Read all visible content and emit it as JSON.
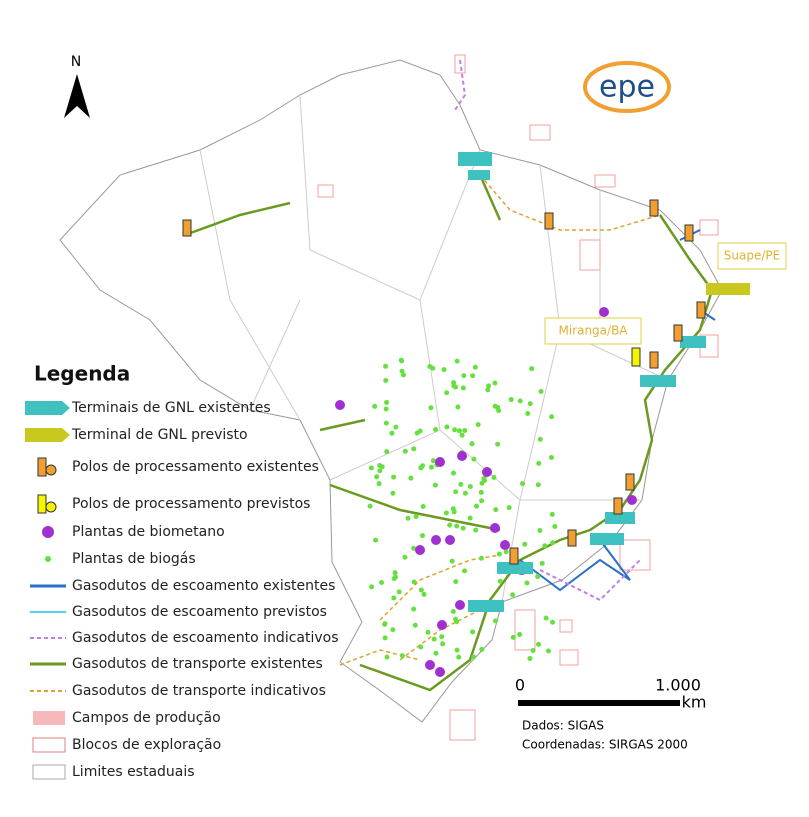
{
  "north_label": "N",
  "logo": "epe",
  "annotations": [
    "Suape/PE",
    "Miranga/BA"
  ],
  "legend": {
    "title": "Legenda",
    "items": [
      "Terminais de GNL existentes",
      "Terminal de GNL previsto",
      "Polos de processamento existentes",
      "Polos de processamento previstos",
      "Plantas de biometano",
      "Plantas de biogás",
      "Gasodutos de escoamento existentes",
      "Gasodutos de escoamento previstos",
      "Gasodutos de escoamento indicativos",
      "Gasodutos de transporte existentes",
      "Gasodutos de transporte indicativos",
      "Campos de produção",
      "Blocos de exploração",
      "Limites estaduais"
    ]
  },
  "scale": {
    "start": "0",
    "end": "1.000",
    "unit": "km"
  },
  "credits": [
    "Dados: SIGAS",
    "Coordenadas: SIRGAS 2000"
  ]
}
